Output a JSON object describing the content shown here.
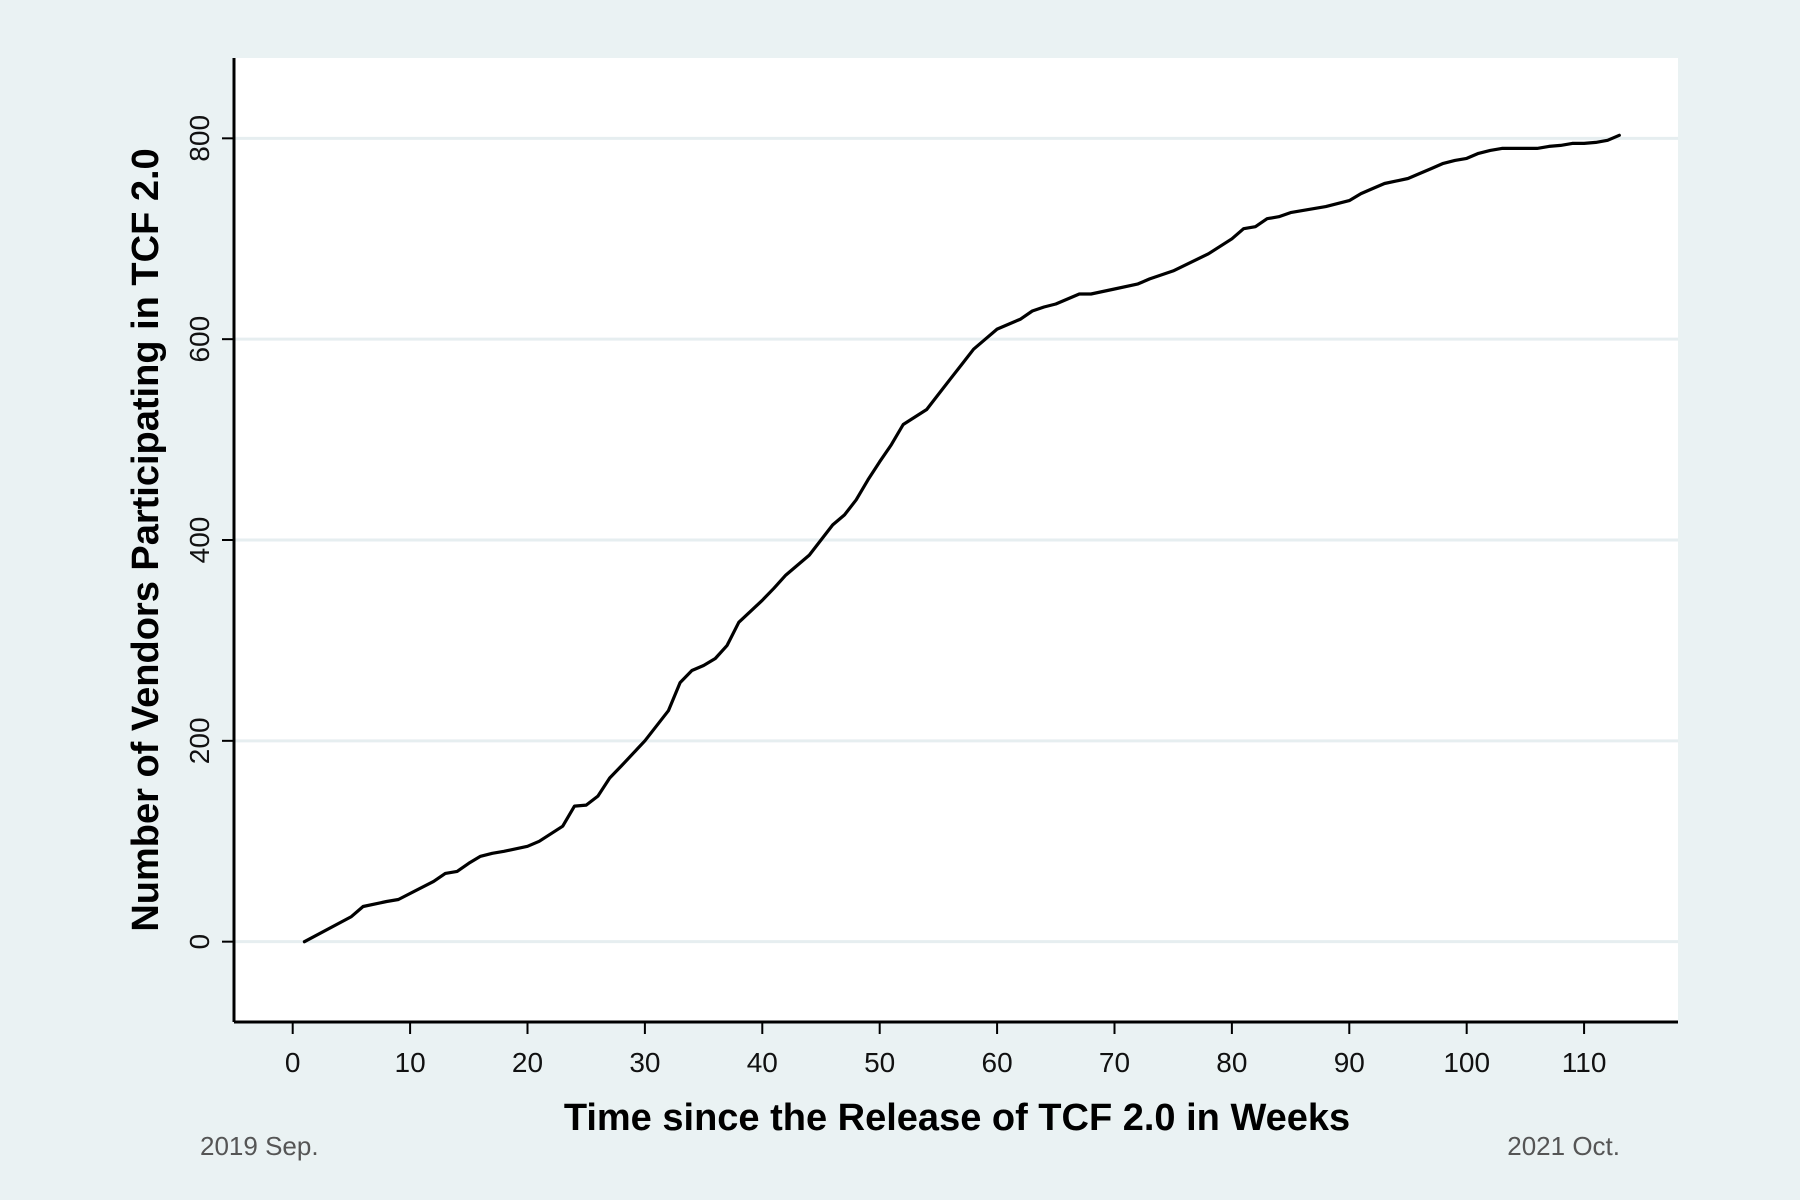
{
  "chart_data": {
    "type": "line",
    "title": "",
    "xlabel": "Time since the Release of TCF 2.0 in Weeks",
    "ylabel": "Number of Vendors Participating in TCF 2.0",
    "xlim": [
      -5,
      118
    ],
    "ylim": [
      -80,
      880
    ],
    "xticks": [
      0,
      10,
      20,
      30,
      40,
      50,
      60,
      70,
      80,
      90,
      100,
      110
    ],
    "yticks": [
      0,
      200,
      400,
      600,
      800
    ],
    "grid": true,
    "legend": "none",
    "series": [
      {
        "color": "#000000",
        "x": [
          1,
          5,
          6,
          8,
          9,
          12,
          13,
          14,
          15,
          16,
          17,
          18,
          20,
          21,
          23,
          24,
          25,
          26,
          27,
          28,
          30,
          31,
          32,
          33,
          34,
          35,
          36,
          37,
          38,
          40,
          41,
          42,
          44,
          45,
          46,
          47,
          48,
          49,
          50,
          51,
          52,
          54,
          55,
          56,
          57,
          58,
          59,
          60,
          61,
          62,
          63,
          64,
          65,
          67,
          68,
          70,
          72,
          73,
          75,
          78,
          80,
          81,
          82,
          83,
          84,
          85,
          86,
          88,
          90,
          91,
          92,
          93,
          95,
          96,
          97,
          98,
          99,
          100,
          101,
          102,
          103,
          105,
          106,
          107,
          108,
          109,
          110,
          111,
          112,
          113
        ],
        "y": [
          0,
          25,
          35,
          40,
          42,
          60,
          68,
          70,
          78,
          85,
          88,
          90,
          95,
          100,
          115,
          135,
          136,
          145,
          163,
          175,
          200,
          215,
          230,
          258,
          270,
          275,
          282,
          295,
          318,
          340,
          352,
          365,
          385,
          400,
          415,
          425,
          440,
          460,
          478,
          495,
          515,
          530,
          545,
          560,
          575,
          590,
          600,
          610,
          615,
          620,
          628,
          632,
          635,
          645,
          645,
          650,
          655,
          660,
          668,
          685,
          700,
          710,
          712,
          720,
          722,
          726,
          728,
          732,
          738,
          745,
          750,
          755,
          760,
          765,
          770,
          775,
          778,
          780,
          785,
          788,
          790,
          790,
          790,
          792,
          793,
          795,
          795,
          796,
          798,
          803
        ]
      }
    ]
  },
  "notes": {
    "start": "2019 Sep.",
    "end": "2021 Oct."
  }
}
